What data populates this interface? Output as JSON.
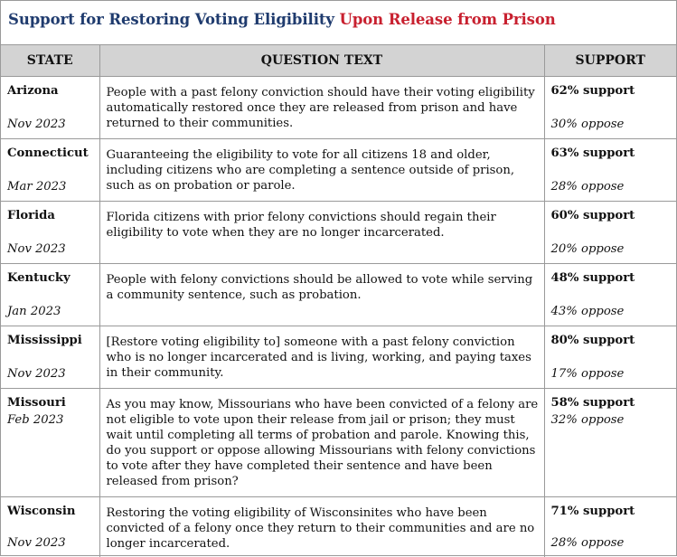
{
  "title": {
    "part1": "Support for Restoring Voting Eligibility",
    "part2": "Upon Release from Prison"
  },
  "headers": [
    "STATE",
    "QUESTION TEXT",
    "SUPPORT"
  ],
  "rows": [
    {
      "state": "Arizona",
      "date": "Nov 2023",
      "question": "People with a past felony conviction should have their voting eligibility automatically restored once they are released from prison and have returned to their communities.",
      "support": "62% support",
      "oppose": "30% oppose"
    },
    {
      "state": "Connecticut",
      "date": "Mar 2023",
      "question": "Guaranteeing the eligibility to vote for all citizens 18 and older, including citizens who are completing a sentence outside of prison, such as on probation or parole.",
      "support": "63% support",
      "oppose": "28% oppose"
    },
    {
      "state": "Florida",
      "date": "Nov 2023",
      "question": "Florida citizens with prior felony convictions should regain their eligibility to vote when they are no longer incarcerated.",
      "support": "60% support",
      "oppose": "20% oppose"
    },
    {
      "state": "Kentucky",
      "date": "Jan 2023",
      "question": "People with felony convictions should be allowed to vote while serving a community sentence, such as probation.",
      "support": "48% support",
      "oppose": "43% oppose"
    },
    {
      "state": "Mississippi",
      "date": "Nov 2023",
      "question": "[Restore voting eligibility to] someone with a past felony conviction who is no longer incarcerated and is living, working, and paying taxes in their community.",
      "support": "80% support",
      "oppose": "17% oppose"
    },
    {
      "state": "Missouri",
      "date": "Feb 2023",
      "question": "As you may know, Missourians who have been convicted of a felony are not eligible to vote  upon their release from jail or prison; they must wait until completing all terms of probation  and parole. Knowing this, do you support or oppose allowing Missourians with felony convictions to vote after they have completed their sentence and have been released from  prison?",
      "support": "58% support",
      "oppose": "32% oppose"
    },
    {
      "state": "Wisconsin",
      "date": "Nov 2023",
      "question": "Restoring the voting eligibility of Wisconsinites who have been convicted of a felony once they return to their communities and are no longer incarcerated.",
      "support": "71% support",
      "oppose": "28% oppose"
    }
  ]
}
